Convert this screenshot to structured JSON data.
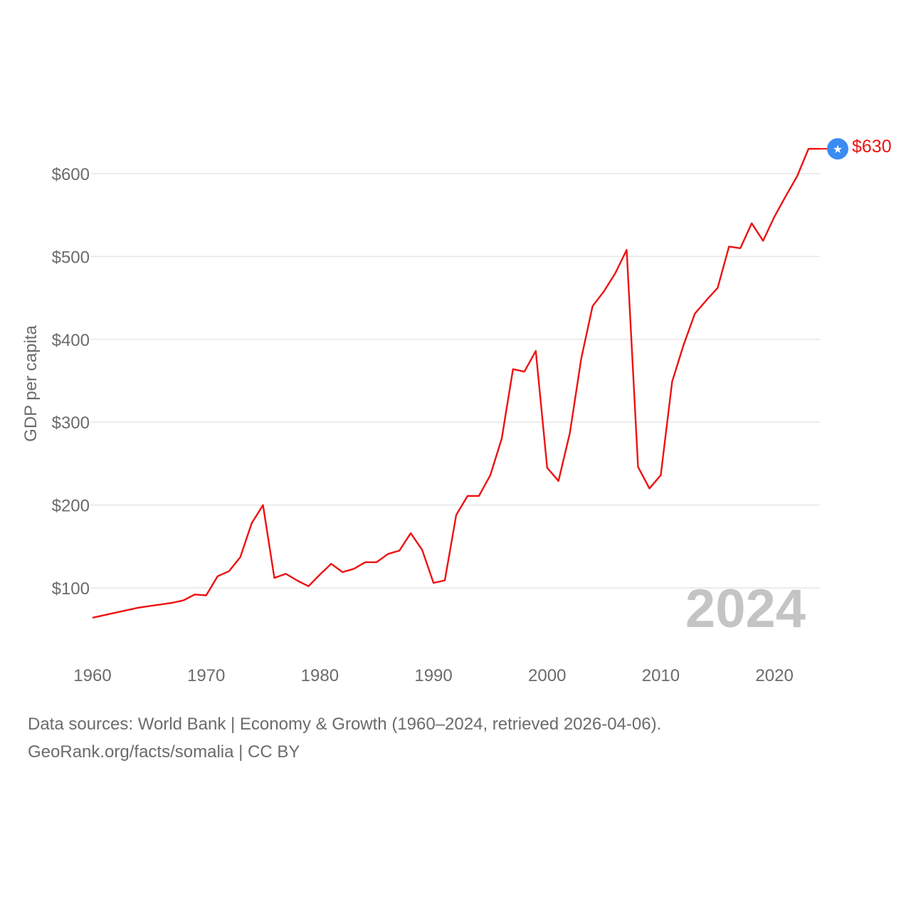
{
  "chart_data": {
    "type": "line",
    "title": "",
    "xlabel": "",
    "ylabel": "GDP per capita",
    "xlim": [
      1960,
      2024
    ],
    "ylim": [
      30,
      650
    ],
    "yticks": [
      {
        "value": 100,
        "label": "$100"
      },
      {
        "value": 200,
        "label": "$200"
      },
      {
        "value": 300,
        "label": "$300"
      },
      {
        "value": 400,
        "label": "$400"
      },
      {
        "value": 500,
        "label": "$500"
      },
      {
        "value": 600,
        "label": "$600"
      }
    ],
    "xticks": [
      {
        "value": 1960,
        "label": "1960"
      },
      {
        "value": 1970,
        "label": "1970"
      },
      {
        "value": 1980,
        "label": "1980"
      },
      {
        "value": 1990,
        "label": "1990"
      },
      {
        "value": 2000,
        "label": "2000"
      },
      {
        "value": 2010,
        "label": "2010"
      },
      {
        "value": 2020,
        "label": "2020"
      }
    ],
    "grid": true,
    "series": [
      {
        "name": "Somalia",
        "color": "#ee1111",
        "x": [
          1960,
          1961,
          1962,
          1963,
          1964,
          1965,
          1966,
          1967,
          1968,
          1969,
          1970,
          1971,
          1972,
          1973,
          1974,
          1975,
          1976,
          1977,
          1978,
          1979,
          1980,
          1981,
          1982,
          1983,
          1984,
          1985,
          1986,
          1987,
          1988,
          1989,
          1990,
          1991,
          1992,
          1993,
          1994,
          1995,
          1996,
          1997,
          1998,
          1999,
          2000,
          2001,
          2002,
          2003,
          2004,
          2005,
          2006,
          2007,
          2008,
          2009,
          2010,
          2011,
          2012,
          2013,
          2014,
          2015,
          2016,
          2017,
          2018,
          2019,
          2020,
          2021,
          2022,
          2023,
          2024
        ],
        "values": [
          64,
          67,
          70,
          73,
          76,
          78,
          80,
          82,
          85,
          92,
          91,
          114,
          120,
          137,
          178,
          200,
          112,
          117,
          109,
          102,
          116,
          129,
          119,
          123,
          131,
          131,
          141,
          145,
          166,
          146,
          106,
          109,
          188,
          211,
          211,
          236,
          280,
          364,
          361,
          386,
          245,
          229,
          287,
          377,
          440,
          458,
          480,
          508,
          246,
          220,
          236,
          349,
          393,
          431,
          447,
          462,
          512,
          510,
          540,
          519,
          548,
          573,
          597,
          630,
          630
        ]
      }
    ],
    "end_value_label": "$630",
    "end_marker_icon": "somalia-flag-icon",
    "end_marker_color": "#3b8cf2",
    "year_label": "2024"
  },
  "footer": {
    "sources": "Data sources: World Bank | Economy & Growth (1960–2024, retrieved 2026-04-06).",
    "attribution": "GeoRank.org/facts/somalia | CC BY"
  }
}
